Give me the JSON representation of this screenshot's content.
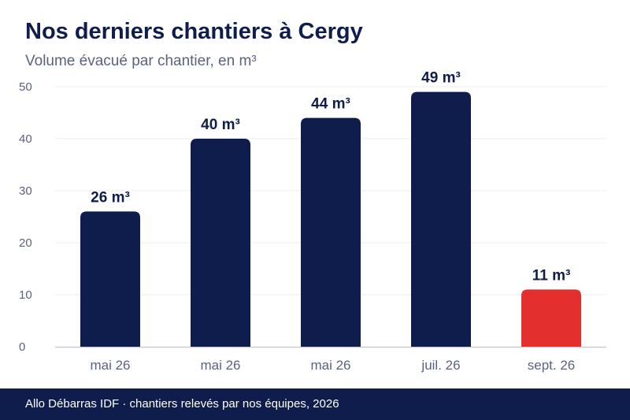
{
  "chart_data": {
    "type": "bar",
    "title": "Nos derniers chantiers à Cergy",
    "subtitle": "Volume évacué par chantier, en m³",
    "categories": [
      "mai 26",
      "mai 26",
      "mai 26",
      "juil. 26",
      "sept. 26"
    ],
    "values": [
      26,
      40,
      44,
      49,
      11
    ],
    "value_labels": [
      "26 m³",
      "40 m³",
      "44 m³",
      "49 m³",
      "11 m³"
    ],
    "highlight_index": 4,
    "ylim": [
      0,
      50
    ],
    "yticks": [
      0,
      10,
      20,
      30,
      40,
      50
    ],
    "grid": true,
    "colors": {
      "bar": "#0f1d4c",
      "highlight": "#e3302f",
      "grid": "#ececf1",
      "axis": "#c9cbd8",
      "tick_text": "#5a6283",
      "label_text": "#0f1d4c"
    }
  },
  "footer": {
    "text": "Allo Débarras IDF · chantiers relevés par nos équipes, 2026"
  }
}
